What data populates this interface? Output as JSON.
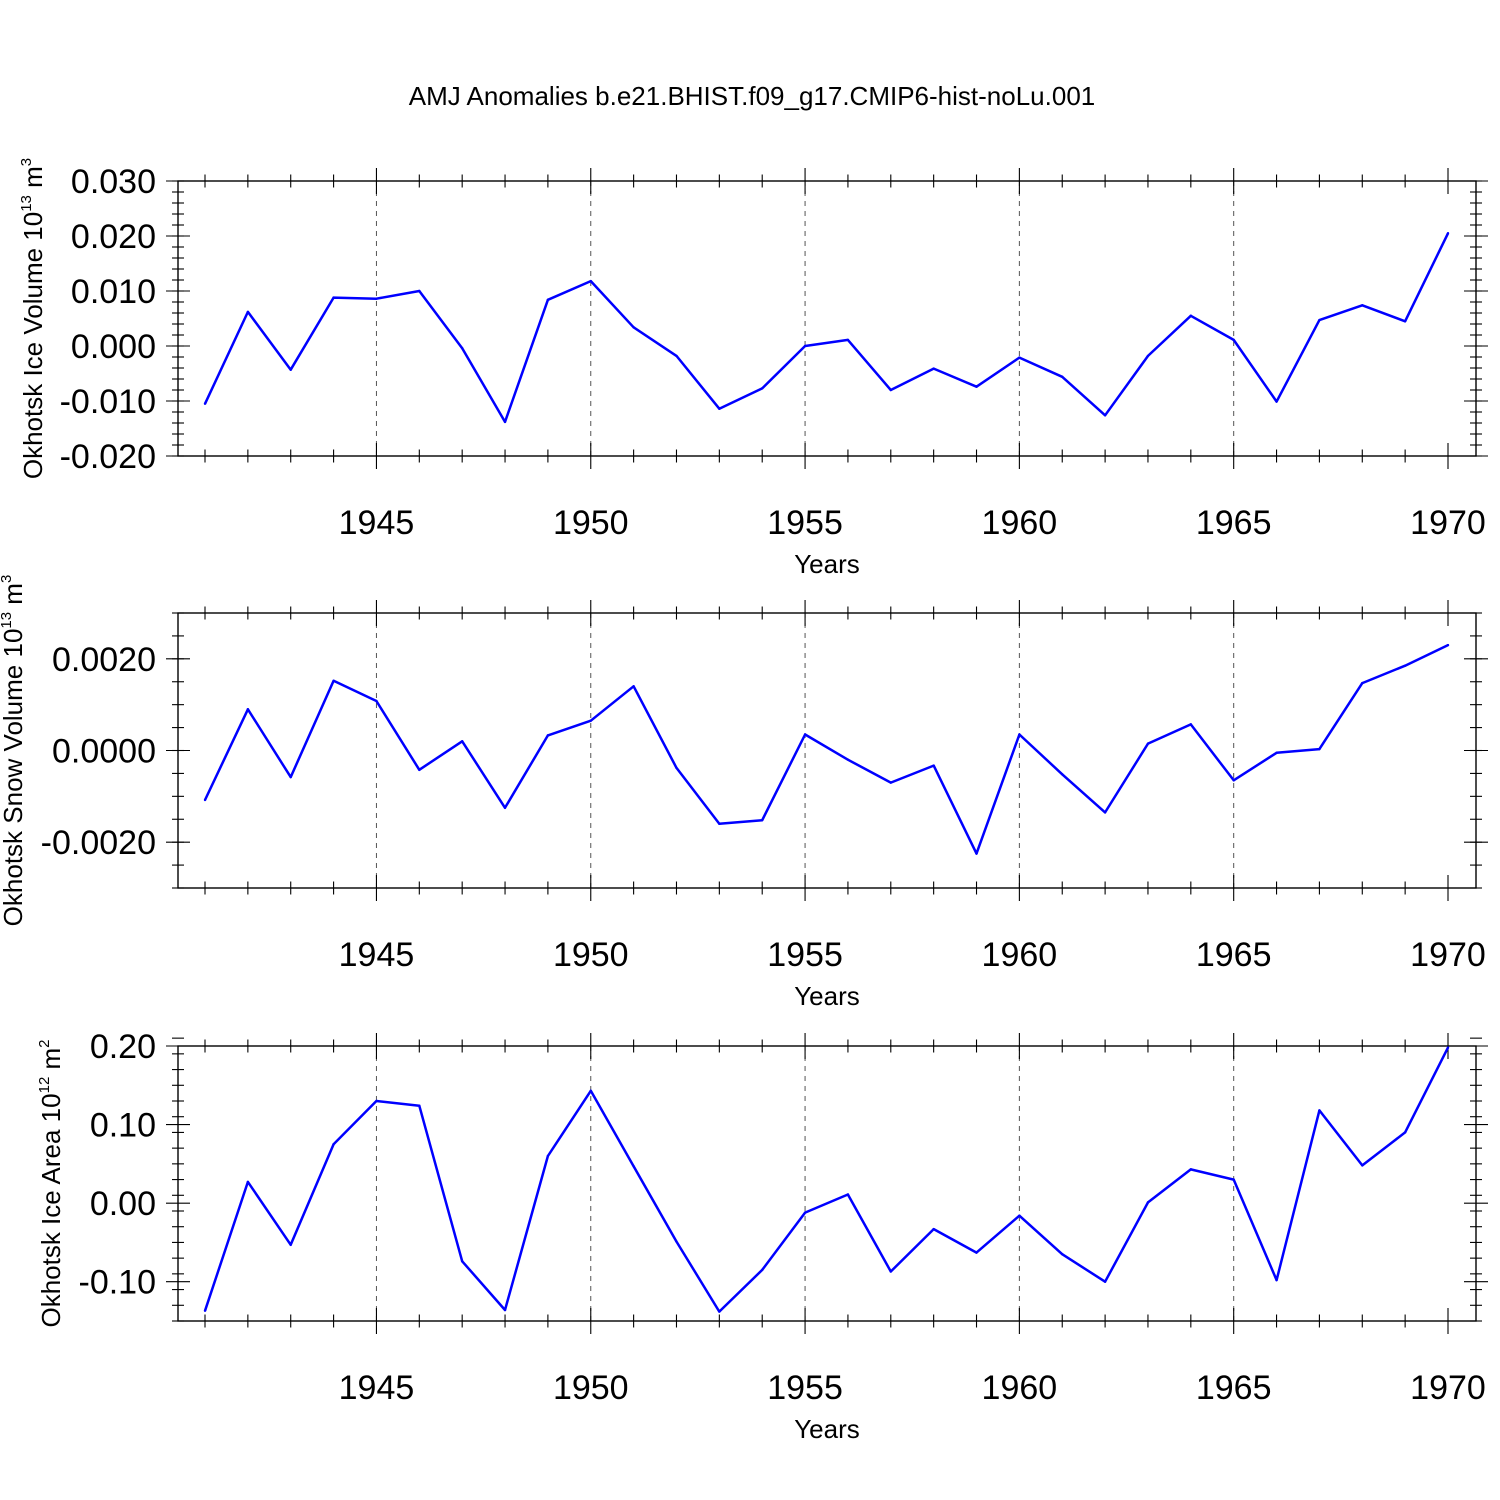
{
  "title": "AMJ Anomalies b.e21.BHIST.f09_g17.CMIP6-hist-noLu.001",
  "colors": {
    "line": "#0000ff",
    "frame": "#000000",
    "grid": "#555555"
  },
  "chart_data": [
    {
      "type": "line",
      "ylabel": "Okhotsk Ice Volume 10",
      "ylabel_exp": "13",
      "ylabel_unit": " m",
      "ylabel_unit_exp": "3",
      "xlabel": "Years",
      "xlim": [
        1941,
        1970
      ],
      "ylim": [
        -0.02,
        0.03
      ],
      "yticks": [
        -0.02,
        -0.01,
        0.0,
        0.01,
        0.02,
        0.03
      ],
      "ytick_labels": [
        "-0.020",
        "-0.010",
        "0.000",
        "0.010",
        "0.020",
        "0.030"
      ],
      "yminor_step": 0.002,
      "xticks": [
        1945,
        1950,
        1955,
        1960,
        1965,
        1970
      ],
      "xtick_labels": [
        "1945",
        "1950",
        "1955",
        "1960",
        "1965",
        "1970"
      ],
      "grid": "vertical dashed at major x ticks",
      "x": [
        1941,
        1942,
        1943,
        1944,
        1945,
        1946,
        1947,
        1948,
        1949,
        1950,
        1951,
        1952,
        1953,
        1954,
        1955,
        1956,
        1957,
        1958,
        1959,
        1960,
        1961,
        1962,
        1963,
        1964,
        1965,
        1966,
        1967,
        1968,
        1969,
        1970
      ],
      "values": [
        -0.0105,
        0.0062,
        -0.0043,
        0.0088,
        0.0086,
        0.01,
        -0.0004,
        -0.0138,
        0.0084,
        0.0118,
        0.0034,
        -0.0018,
        -0.0114,
        -0.0077,
        0.0,
        0.0011,
        -0.008,
        -0.0041,
        -0.0074,
        -0.0021,
        -0.0056,
        -0.0126,
        -0.0018,
        0.0055,
        0.0011,
        -0.0101,
        0.0047,
        0.0074,
        0.0045,
        0.0205
      ]
    },
    {
      "type": "line",
      "ylabel": "Okhotsk Snow Volume 10",
      "ylabel_exp": "13",
      "ylabel_unit": " m",
      "ylabel_unit_exp": "3",
      "xlabel": "Years",
      "xlim": [
        1941,
        1970
      ],
      "ylim": [
        -0.003,
        0.003
      ],
      "yticks": [
        -0.002,
        0.0,
        0.002
      ],
      "ytick_labels": [
        "-0.0020",
        "0.0000",
        "0.0020"
      ],
      "yminor_step": 0.0005,
      "xticks": [
        1945,
        1950,
        1955,
        1960,
        1965,
        1970
      ],
      "xtick_labels": [
        "1945",
        "1950",
        "1955",
        "1960",
        "1965",
        "1970"
      ],
      "grid": "vertical dashed at major x ticks",
      "x": [
        1941,
        1942,
        1943,
        1944,
        1945,
        1946,
        1947,
        1948,
        1949,
        1950,
        1951,
        1952,
        1953,
        1954,
        1955,
        1956,
        1957,
        1958,
        1959,
        1960,
        1961,
        1962,
        1963,
        1964,
        1965,
        1966,
        1967,
        1968,
        1969,
        1970
      ],
      "values": [
        -0.00108,
        0.0009,
        -0.00058,
        0.00152,
        0.00108,
        -0.00042,
        0.0002,
        -0.00125,
        0.00033,
        0.00065,
        0.0014,
        -0.00038,
        -0.0016,
        -0.00152,
        0.00035,
        -0.0002,
        -0.0007,
        -0.00033,
        -0.00225,
        0.00035,
        -0.00052,
        -0.00135,
        0.00015,
        0.00057,
        -0.00065,
        -5e-05,
        3e-05,
        0.00147,
        0.00185,
        0.0023
      ]
    },
    {
      "type": "line",
      "ylabel": "Okhotsk Ice Area 10",
      "ylabel_exp": "12",
      "ylabel_unit": " m",
      "ylabel_unit_exp": "2",
      "xlabel": "Years",
      "xlim": [
        1941,
        1970
      ],
      "ylim": [
        -0.15,
        0.2
      ],
      "yticks": [
        -0.1,
        0.0,
        0.1,
        0.2
      ],
      "ytick_labels": [
        "-0.10",
        "0.00",
        "0.10",
        "0.20"
      ],
      "yminor_step": 0.02,
      "xticks": [
        1945,
        1950,
        1955,
        1960,
        1965,
        1970
      ],
      "xtick_labels": [
        "1945",
        "1950",
        "1955",
        "1960",
        "1965",
        "1970"
      ],
      "grid": "vertical dashed at major x ticks",
      "x": [
        1941,
        1942,
        1943,
        1944,
        1945,
        1946,
        1947,
        1948,
        1949,
        1950,
        1951,
        1952,
        1953,
        1954,
        1955,
        1956,
        1957,
        1958,
        1959,
        1960,
        1961,
        1962,
        1963,
        1964,
        1965,
        1966,
        1967,
        1968,
        1969,
        1970
      ],
      "values": [
        -0.137,
        0.027,
        -0.053,
        0.075,
        0.13,
        0.124,
        -0.074,
        -0.136,
        0.06,
        0.143,
        0.047,
        -0.049,
        -0.138,
        -0.085,
        -0.012,
        0.011,
        -0.087,
        -0.033,
        -0.063,
        -0.016,
        -0.065,
        -0.1,
        0.001,
        0.043,
        0.03,
        -0.098,
        0.118,
        0.048,
        0.09,
        0.198
      ]
    }
  ]
}
